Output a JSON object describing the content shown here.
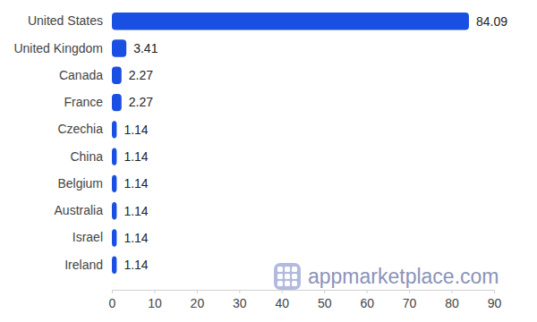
{
  "chart_data": {
    "type": "bar",
    "orientation": "horizontal",
    "categories": [
      "United States",
      "United Kingdom",
      "Canada",
      "France",
      "Czechia",
      "China",
      "Belgium",
      "Australia",
      "Israel",
      "Ireland"
    ],
    "values": [
      84.09,
      3.41,
      2.27,
      2.27,
      1.14,
      1.14,
      1.14,
      1.14,
      1.14,
      1.14
    ],
    "color": "#1a4fe3",
    "xlim": [
      0,
      90
    ],
    "xticks": [
      0,
      10,
      20,
      30,
      40,
      50,
      60,
      70,
      80,
      90
    ],
    "grid": false,
    "data_labels": true,
    "annotations": [
      "appmarketplace.com"
    ]
  }
}
